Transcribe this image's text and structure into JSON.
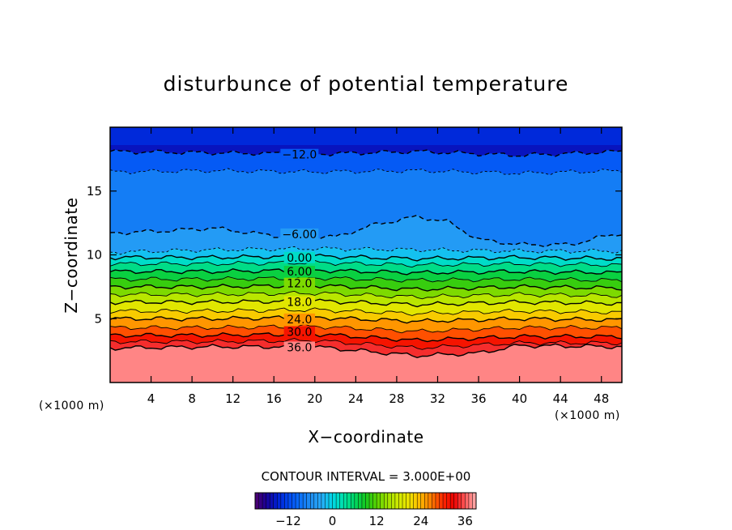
{
  "chart_data": {
    "type": "contour",
    "title": "disturbunce of potential temperature",
    "xlabel": "X−coordinate",
    "ylabel": "Z−coordinate",
    "x_unit": "(×1000 m)",
    "y_unit": "(×1000 m)",
    "xlim": [
      0,
      50
    ],
    "ylim": [
      0,
      20
    ],
    "xticks": [
      4,
      8,
      12,
      16,
      20,
      24,
      28,
      32,
      36,
      40,
      44,
      48
    ],
    "yticks": [
      5,
      10,
      15
    ],
    "contour_interval_text": "CONTOUR INTERVAL = 3.000E+00",
    "contour_interval": 3.0,
    "contour_labels": [
      "−12.0",
      "−6.00",
      "0.00",
      "6.00",
      "12.0",
      "18.0",
      "24.0",
      "30.0",
      "36.0"
    ],
    "contour_label_values": [
      -12,
      -6,
      0,
      6,
      12,
      18,
      24,
      30,
      36
    ],
    "colorbar": {
      "min": -21,
      "max": 39,
      "step": 3,
      "ticks": [
        -12,
        0,
        12,
        24,
        36
      ],
      "tick_labels": [
        "−12",
        "0",
        "12",
        "24",
        "36"
      ]
    },
    "negative_contours_dashed": true,
    "contour_levels": [
      {
        "value": -12,
        "heights": [
          [
            0,
            18.1
          ],
          [
            10,
            18.0
          ],
          [
            20,
            17.9
          ],
          [
            30,
            18.1
          ],
          [
            40,
            17.8
          ],
          [
            50,
            18.1
          ]
        ]
      },
      {
        "value": -9,
        "heights": [
          [
            0,
            16.5
          ],
          [
            10,
            16.6
          ],
          [
            20,
            16.5
          ],
          [
            30,
            16.6
          ],
          [
            40,
            16.4
          ],
          [
            50,
            16.6
          ]
        ]
      },
      {
        "value": -6,
        "heights": [
          [
            0,
            11.7
          ],
          [
            6,
            11.9
          ],
          [
            10,
            12.1
          ],
          [
            16,
            11.5
          ],
          [
            22,
            11.4
          ],
          [
            26,
            12.4
          ],
          [
            30,
            13.0
          ],
          [
            33,
            12.6
          ],
          [
            36,
            11.2
          ],
          [
            40,
            10.8
          ],
          [
            45,
            10.8
          ],
          [
            48,
            11.4
          ],
          [
            50,
            11.7
          ]
        ]
      },
      {
        "value": -3,
        "heights": [
          [
            0,
            10.2
          ],
          [
            10,
            10.4
          ],
          [
            20,
            10.5
          ],
          [
            30,
            10.4
          ],
          [
            40,
            10.3
          ],
          [
            50,
            10.3
          ]
        ]
      },
      {
        "value": 0,
        "heights": [
          [
            0,
            9.8
          ],
          [
            10,
            9.8
          ],
          [
            20,
            9.9
          ],
          [
            30,
            9.7
          ],
          [
            40,
            9.8
          ],
          [
            50,
            9.7
          ]
        ]
      },
      {
        "value": 3,
        "heights": [
          [
            0,
            9.3
          ],
          [
            10,
            9.3
          ],
          [
            20,
            9.4
          ],
          [
            30,
            9.2
          ],
          [
            40,
            9.3
          ],
          [
            50,
            9.2
          ]
        ]
      },
      {
        "value": 6,
        "heights": [
          [
            0,
            8.7
          ],
          [
            10,
            8.7
          ],
          [
            20,
            8.8
          ],
          [
            30,
            8.6
          ],
          [
            40,
            8.7
          ],
          [
            50,
            8.6
          ]
        ]
      },
      {
        "value": 9,
        "heights": [
          [
            0,
            8.1
          ],
          [
            10,
            8.1
          ],
          [
            20,
            8.2
          ],
          [
            30,
            8.0
          ],
          [
            40,
            8.1
          ],
          [
            50,
            8.0
          ]
        ]
      },
      {
        "value": 12,
        "heights": [
          [
            0,
            7.5
          ],
          [
            10,
            7.5
          ],
          [
            20,
            7.6
          ],
          [
            30,
            7.3
          ],
          [
            40,
            7.5
          ],
          [
            50,
            7.4
          ]
        ]
      },
      {
        "value": 15,
        "heights": [
          [
            0,
            6.9
          ],
          [
            10,
            6.9
          ],
          [
            20,
            7.0
          ],
          [
            30,
            6.7
          ],
          [
            40,
            6.9
          ],
          [
            50,
            6.8
          ]
        ]
      },
      {
        "value": 18,
        "heights": [
          [
            0,
            6.3
          ],
          [
            10,
            6.3
          ],
          [
            20,
            6.4
          ],
          [
            30,
            6.1
          ],
          [
            40,
            6.3
          ],
          [
            50,
            6.2
          ]
        ]
      },
      {
        "value": 21,
        "heights": [
          [
            0,
            5.6
          ],
          [
            10,
            5.6
          ],
          [
            20,
            5.7
          ],
          [
            30,
            5.4
          ],
          [
            40,
            5.6
          ],
          [
            50,
            5.5
          ]
        ]
      },
      {
        "value": 24,
        "heights": [
          [
            0,
            5.0
          ],
          [
            10,
            5.0
          ],
          [
            20,
            5.1
          ],
          [
            30,
            4.8
          ],
          [
            40,
            5.0
          ],
          [
            50,
            4.9
          ]
        ]
      },
      {
        "value": 27,
        "heights": [
          [
            0,
            4.3
          ],
          [
            10,
            4.3
          ],
          [
            20,
            4.4
          ],
          [
            30,
            4.0
          ],
          [
            40,
            4.3
          ],
          [
            50,
            4.3
          ]
        ]
      },
      {
        "value": 30,
        "heights": [
          [
            0,
            3.7
          ],
          [
            10,
            3.7
          ],
          [
            20,
            3.8
          ],
          [
            30,
            3.3
          ],
          [
            40,
            3.6
          ],
          [
            50,
            3.6
          ]
        ]
      },
      {
        "value": 33,
        "heights": [
          [
            0,
            3.2
          ],
          [
            10,
            3.2
          ],
          [
            20,
            3.3
          ],
          [
            30,
            2.7
          ],
          [
            40,
            3.1
          ],
          [
            50,
            3.1
          ]
        ]
      },
      {
        "value": 36,
        "heights": [
          [
            0,
            2.7
          ],
          [
            10,
            2.8
          ],
          [
            20,
            2.8
          ],
          [
            30,
            2.1
          ],
          [
            36,
            2.3
          ],
          [
            40,
            2.9
          ],
          [
            50,
            2.8
          ]
        ]
      }
    ]
  }
}
